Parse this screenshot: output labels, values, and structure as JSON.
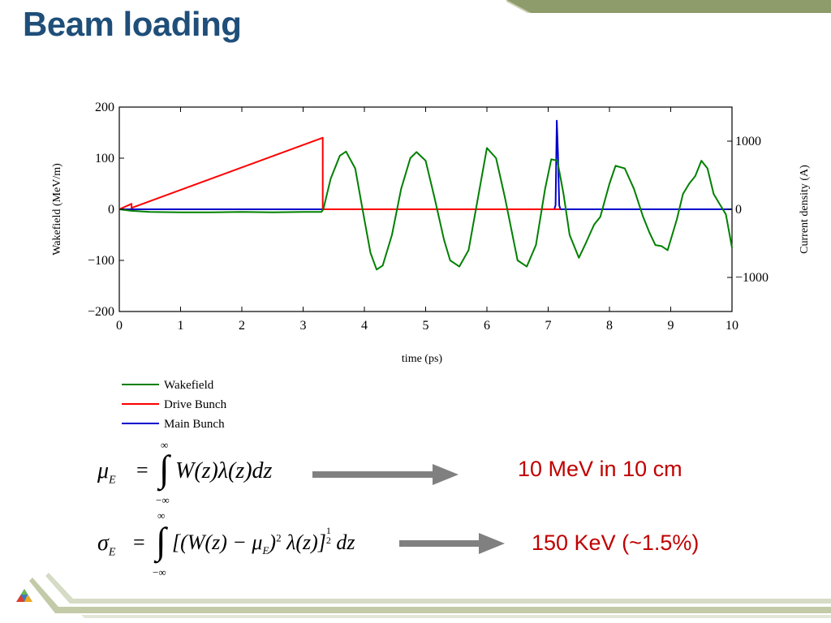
{
  "slide": {
    "title": "Beam loading",
    "result1": "10 MeV in 10 cm",
    "result2": "150 KeV (~1.5%)",
    "formula1": {
      "lhs": "μ",
      "sub": "E",
      "body": "W(z)λ(z)dz",
      "upper": "∞",
      "lower": "−∞"
    },
    "formula2": {
      "lhs": "σ",
      "sub": "E",
      "body_a": "[(W(z) − μ",
      "body_sub": "E",
      "body_b": ")",
      "sq": "2",
      "body_c": " λ(z)]",
      "half_num": "1",
      "half_den": "2",
      "dz": " dz",
      "upper": "∞",
      "lower": "−∞"
    },
    "colors": {
      "title": "#1f4e79",
      "result": "#c00000",
      "arrow": "#808080",
      "banner": "#8e9b6a"
    }
  },
  "chart_data": {
    "type": "line",
    "xlabel": "time (ps)",
    "ylabel": "Wakefield (MeV/m)",
    "y2label": "Current density (A)",
    "xlim": [
      0,
      10
    ],
    "ylim": [
      -200,
      200
    ],
    "y2lim": [
      -1500,
      1500
    ],
    "x_ticks": [
      "0",
      "1",
      "2",
      "3",
      "4",
      "5",
      "6",
      "7",
      "8",
      "9",
      "10"
    ],
    "y_ticks": [
      "200",
      "100",
      "0",
      "−100",
      "−200"
    ],
    "y2_ticks": [
      "1000",
      "0",
      "−1000"
    ],
    "legend_position": "below",
    "series": [
      {
        "name": "Wakefield",
        "axis": "left",
        "color": "#008000",
        "x": [
          0,
          0.2,
          0.5,
          1,
          1.5,
          2,
          2.5,
          3,
          3.3,
          3.33,
          3.45,
          3.6,
          3.7,
          3.85,
          4.0,
          4.1,
          4.2,
          4.3,
          4.45,
          4.6,
          4.75,
          4.85,
          5.0,
          5.15,
          5.3,
          5.4,
          5.55,
          5.7,
          5.85,
          6.0,
          6.15,
          6.3,
          6.5,
          6.65,
          6.8,
          6.95,
          7.05,
          7.15,
          7.25,
          7.35,
          7.5,
          7.6,
          7.75,
          7.85,
          8.0,
          8.1,
          8.25,
          8.4,
          8.55,
          8.65,
          8.75,
          8.85,
          8.95,
          9.1,
          9.2,
          9.3,
          9.4,
          9.5,
          9.6,
          9.7,
          9.8,
          9.9,
          10
        ],
        "y": [
          0,
          -3,
          -5,
          -6,
          -6,
          -5,
          -6,
          -5,
          -5,
          0,
          60,
          105,
          113,
          80,
          -20,
          -85,
          -118,
          -110,
          -50,
          40,
          100,
          112,
          95,
          20,
          -60,
          -100,
          -112,
          -80,
          20,
          120,
          100,
          20,
          -100,
          -112,
          -70,
          40,
          98,
          95,
          30,
          -50,
          -95,
          -70,
          -30,
          -15,
          50,
          85,
          80,
          40,
          -15,
          -45,
          -70,
          -72,
          -80,
          -20,
          30,
          50,
          65,
          95,
          80,
          30,
          10,
          -10,
          -75
        ]
      },
      {
        "name": "Drive Bunch",
        "axis": "right",
        "color": "#ff0000",
        "x": [
          0,
          0.2,
          0.2,
          3.32,
          3.32,
          3.33,
          7.1,
          7.2
        ],
        "y": [
          0,
          80,
          20,
          1050,
          0,
          0,
          0,
          0
        ]
      },
      {
        "name": "Main Bunch",
        "axis": "right",
        "color": "#0000cc",
        "x": [
          0,
          7.1,
          7.12,
          7.14,
          7.16,
          7.18,
          7.2,
          10
        ],
        "y": [
          0,
          0,
          60,
          1300,
          800,
          60,
          0,
          0
        ]
      }
    ]
  }
}
